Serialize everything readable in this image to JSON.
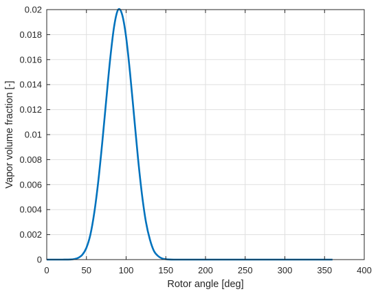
{
  "chart_data": {
    "type": "line",
    "title": "",
    "xlabel": "Rotor angle [deg]",
    "ylabel": "Vapor volume fraction [-]",
    "xlim": [
      0,
      400
    ],
    "ylim": [
      0,
      0.02
    ],
    "x_ticks": [
      "0",
      "50",
      "100",
      "150",
      "200",
      "250",
      "300",
      "350",
      "400"
    ],
    "y_ticks": [
      "0",
      "0.002",
      "0.004",
      "0.006",
      "0.008",
      "0.01",
      "0.012",
      "0.014",
      "0.016",
      "0.018",
      "0.02"
    ],
    "grid": true,
    "legend": "none",
    "series": [
      {
        "color": "#0072BD",
        "x": [
          0,
          10,
          20,
          30,
          35,
          40,
          45,
          50,
          55,
          60,
          65,
          70,
          75,
          80,
          85,
          90,
          95,
          100,
          105,
          110,
          115,
          120,
          125,
          130,
          135,
          140,
          145,
          150,
          160,
          180,
          200,
          250,
          300,
          360
        ],
        "y": [
          0,
          0,
          0,
          1e-05,
          5e-05,
          0.00015,
          0.0004,
          0.00095,
          0.002,
          0.0038,
          0.0063,
          0.0094,
          0.0128,
          0.0161,
          0.0187,
          0.02,
          0.0196,
          0.0178,
          0.0149,
          0.0115,
          0.0081,
          0.0052,
          0.003,
          0.0016,
          0.0007,
          0.0003,
          0.0001,
          3e-05,
          0,
          0,
          0,
          0,
          0,
          0
        ]
      }
    ]
  }
}
